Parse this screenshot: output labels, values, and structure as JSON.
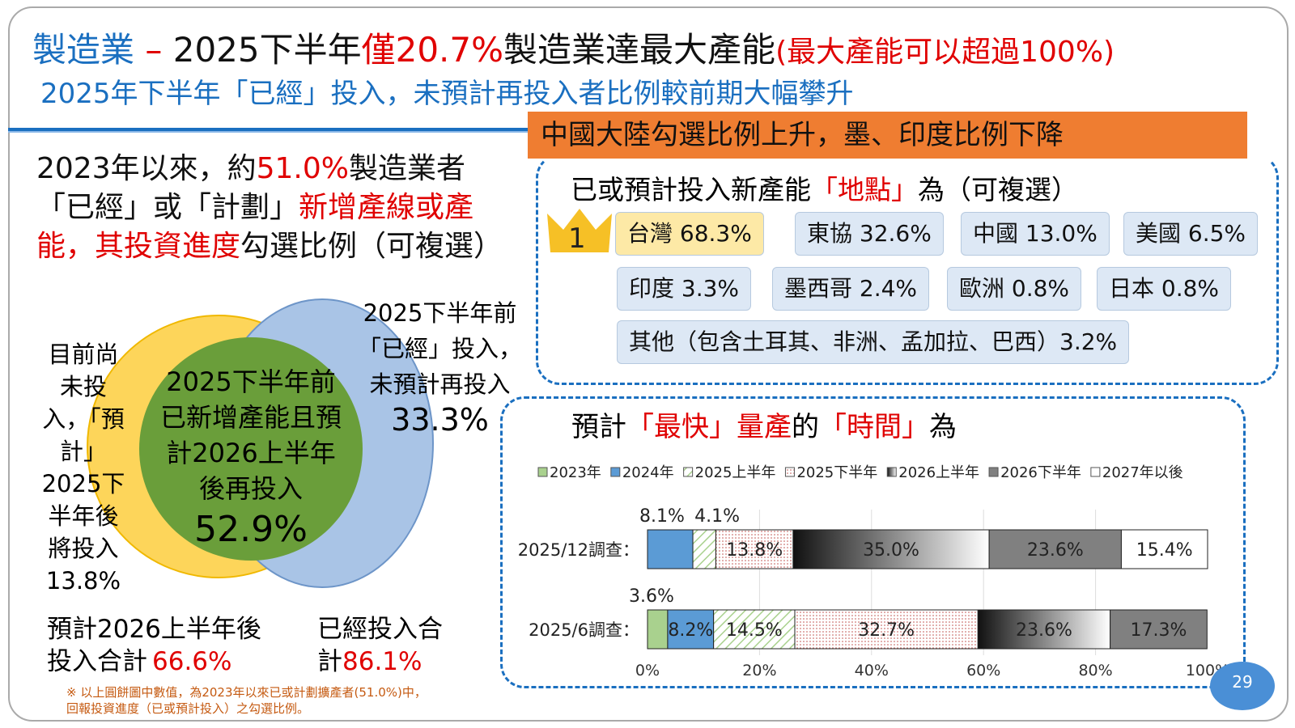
{
  "title": {
    "part1": "製造業",
    "dash": " – ",
    "part2": "2025下半年",
    "part3": "僅20.7%",
    "part4": "製造業達最大產能",
    "part5": "(最大產能可以超過100%)"
  },
  "subtitle": "2025年下半年「已經」投入，未預計再投入者比例較前期大幅攀升",
  "banner": "中國大陸勾選比例上升，墨、印度比例下降",
  "left_text": {
    "a": "2023年以來，約",
    "b": "51.0%",
    "c": "製造業者「已經」或「計劃」",
    "d": "新增產線或產能，其投資進度",
    "e": "勾選比例（可複選）"
  },
  "venn": {
    "yellow_label": "目前尚未投入，「預計」2025下半年後將投入",
    "yellow_value": "13.8%",
    "green_label": "2025下半年前已新增產能且預計2026上半年後再投入",
    "green_value": "52.9%",
    "blue_label": "2025下半年前「已經」投入，未預計再投入",
    "blue_value": "33.3%",
    "colors": {
      "yellow": "#fdd55a",
      "green": "#6a9e3a",
      "blue": "#a9c4e6"
    }
  },
  "totals": {
    "planned_label": "預計2026上半年後投入合計",
    "planned_value": "66.6%",
    "invested_label": "已經投入合計",
    "invested_value": "86.1%"
  },
  "footnote": {
    "line1": "※ 以上圓餅圖中數值，為2023年以來已或計劃擴產者(51.0%)中，",
    "line2": "回報投資進度（已或預計投入）之勾選比例。"
  },
  "locations": {
    "heading_a": "已或預計投入新產能",
    "heading_b": "「地點」",
    "heading_c": "為（可複選）",
    "rank_badge": "1",
    "items": [
      {
        "label": "台灣  68.3%"
      },
      {
        "label": "東協 32.6%"
      },
      {
        "label": "中國  13.0%"
      },
      {
        "label": "美國  6.5%"
      },
      {
        "label": "印度  3.3%"
      },
      {
        "label": "墨西哥 2.4%"
      },
      {
        "label": "歐洲  0.8%"
      },
      {
        "label": "日本 0.8%"
      },
      {
        "label": "其他（包含土耳其、非洲、孟加拉、巴西）3.2%"
      }
    ]
  },
  "timing_heading": {
    "a": "預計",
    "b": "「最快」量產",
    "c": "的",
    "d": "「時間」",
    "e": "為"
  },
  "chart_data": {
    "type": "bar",
    "orientation": "horizontal",
    "stacked": true,
    "legend": [
      "2023年",
      "2024年",
      "2025上半年",
      "2025下半年",
      "2026上半年",
      "2026下半年",
      "2027年以後"
    ],
    "legend_placement": "top",
    "categories": [
      "2025/12調查：",
      "2025/6調查："
    ],
    "series": [
      {
        "name": "2023年",
        "values": [
          0,
          3.6
        ]
      },
      {
        "name": "2024年",
        "values": [
          8.1,
          8.2
        ]
      },
      {
        "name": "2025上半年",
        "values": [
          4.1,
          14.5
        ]
      },
      {
        "name": "2025下半年",
        "values": [
          13.8,
          32.7
        ]
      },
      {
        "name": "2026上半年",
        "values": [
          35.0,
          23.6
        ]
      },
      {
        "name": "2026下半年",
        "values": [
          23.6,
          17.3
        ]
      },
      {
        "name": "2027年以後",
        "values": [
          15.4,
          0
        ]
      }
    ],
    "xlim": [
      0,
      100
    ],
    "xticks": [
      "0%",
      "20%",
      "40%",
      "60%",
      "80%",
      "100%"
    ],
    "grid": true
  },
  "page_number": "29"
}
